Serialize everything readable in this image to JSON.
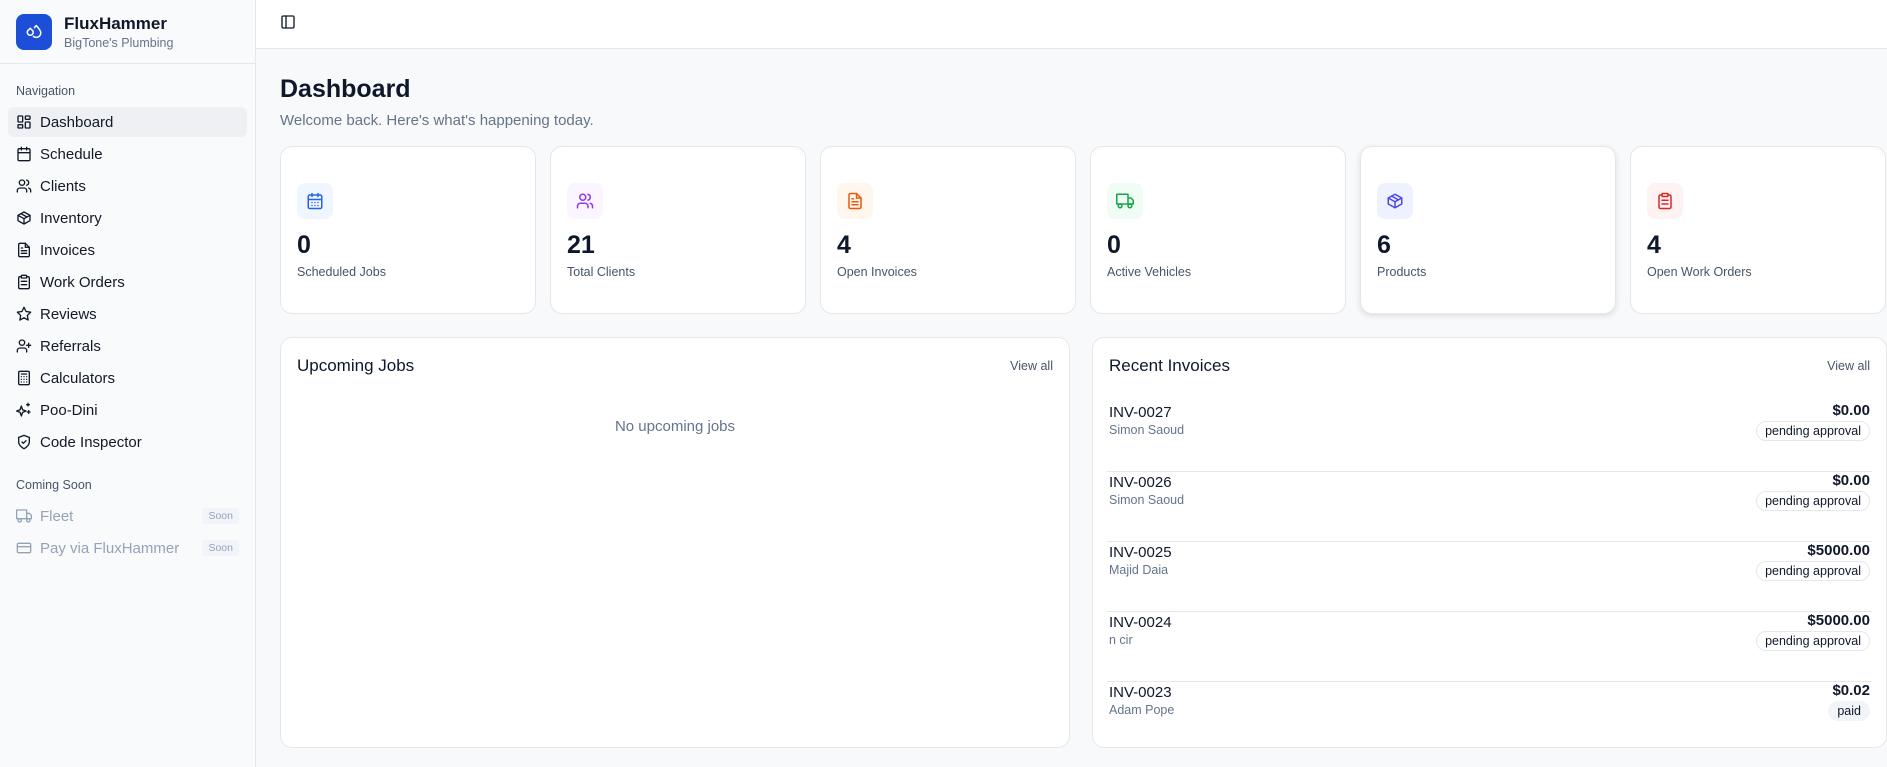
{
  "brand": {
    "name": "FluxHammer",
    "company": "BigTone's Plumbing"
  },
  "sidebar": {
    "nav_heading": "Navigation",
    "items": [
      {
        "label": "Dashboard",
        "icon": "grid-icon",
        "active": true
      },
      {
        "label": "Schedule",
        "icon": "calendar-icon"
      },
      {
        "label": "Clients",
        "icon": "users-icon"
      },
      {
        "label": "Inventory",
        "icon": "package-icon"
      },
      {
        "label": "Invoices",
        "icon": "file-text-icon"
      },
      {
        "label": "Work Orders",
        "icon": "clipboard-icon"
      },
      {
        "label": "Reviews",
        "icon": "star-icon"
      },
      {
        "label": "Referrals",
        "icon": "user-plus-icon"
      },
      {
        "label": "Calculators",
        "icon": "calculator-icon"
      },
      {
        "label": "Poo-Dini",
        "icon": "sparkles-icon"
      },
      {
        "label": "Code Inspector",
        "icon": "shield-check-icon"
      }
    ],
    "soon_heading": "Coming Soon",
    "soon_items": [
      {
        "label": "Fleet",
        "badge": "Soon",
        "icon": "truck-icon"
      },
      {
        "label": "Pay via FluxHammer",
        "badge": "Soon",
        "icon": "credit-card-icon"
      }
    ]
  },
  "header": {
    "title": "Dashboard",
    "subtitle": "Welcome back. Here's what's happening today."
  },
  "stats": [
    {
      "value": "0",
      "label": "Scheduled Jobs",
      "icon": "calendar-icon",
      "color": "#2563eb",
      "bg": "#eff6ff"
    },
    {
      "value": "21",
      "label": "Total Clients",
      "icon": "users-icon",
      "color": "#9333ea",
      "bg": "#faf5ff"
    },
    {
      "value": "4",
      "label": "Open Invoices",
      "icon": "file-text-icon",
      "color": "#ea580c",
      "bg": "#fff7ed"
    },
    {
      "value": "0",
      "label": "Active Vehicles",
      "icon": "truck-icon",
      "color": "#16a34a",
      "bg": "#f0fdf4"
    },
    {
      "value": "6",
      "label": "Products",
      "icon": "package-icon",
      "color": "#4f46e5",
      "bg": "#eef2ff"
    },
    {
      "value": "4",
      "label": "Open Work Orders",
      "icon": "clipboard-icon",
      "color": "#dc2626",
      "bg": "#fef2f2"
    }
  ],
  "upcoming": {
    "title": "Upcoming Jobs",
    "view_all": "View all",
    "empty": "No upcoming jobs"
  },
  "invoices": {
    "title": "Recent Invoices",
    "view_all": "View all",
    "rows": [
      {
        "id": "INV-0027",
        "client": "Simon Saoud",
        "amount": "$0.00",
        "status": "pending approval"
      },
      {
        "id": "INV-0026",
        "client": "Simon Saoud",
        "amount": "$0.00",
        "status": "pending approval"
      },
      {
        "id": "INV-0025",
        "client": "Majid Daia",
        "amount": "$5000.00",
        "status": "pending approval"
      },
      {
        "id": "INV-0024",
        "client": "n cir",
        "amount": "$5000.00",
        "status": "pending approval"
      },
      {
        "id": "INV-0023",
        "client": "Adam Pope",
        "amount": "$0.02",
        "status": "paid"
      }
    ]
  }
}
